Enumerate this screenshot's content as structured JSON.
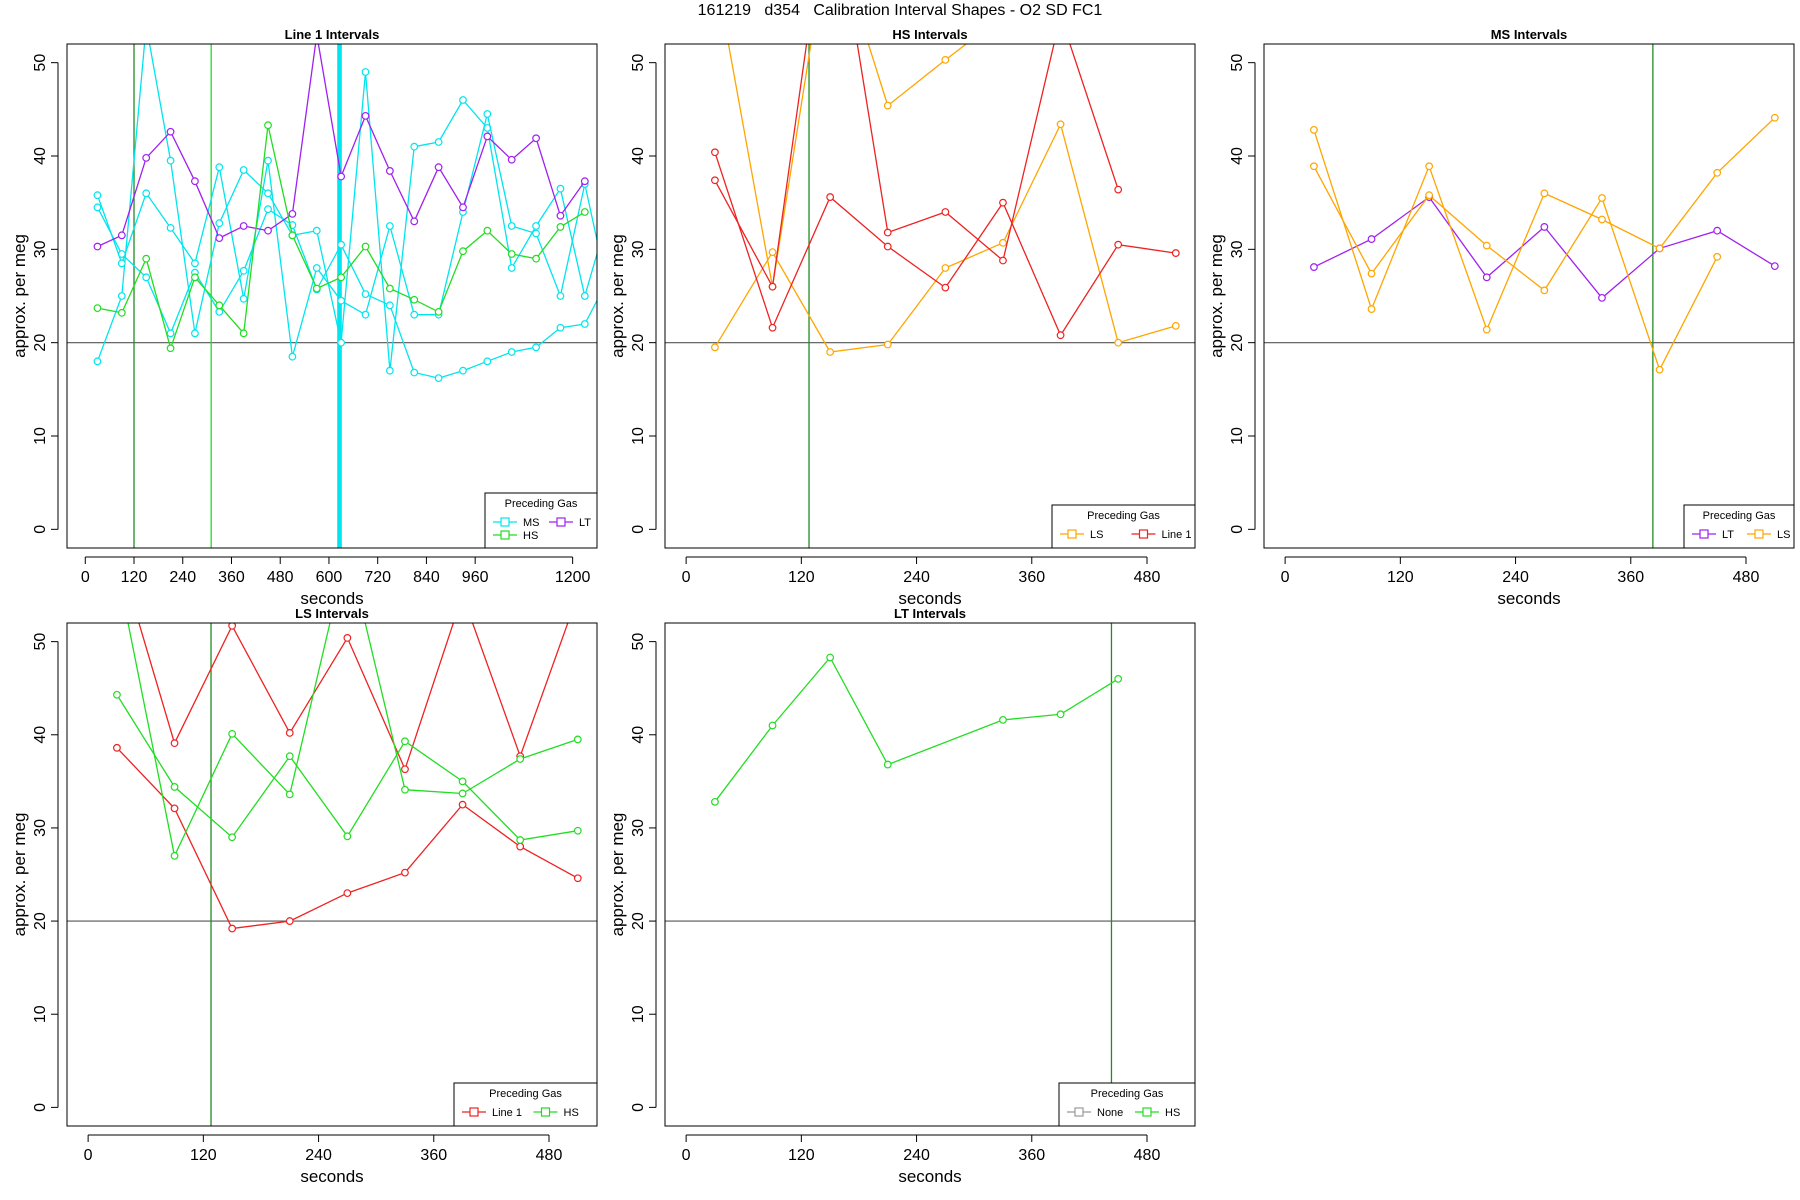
{
  "page": {
    "title": "161219   d354   Calibration Interval Shapes - O2 SD FC1"
  },
  "colors": {
    "MS": "#00e5ee",
    "HS": "#22dd22",
    "LT": "#a020f0",
    "LS": "#ffa500",
    "Line 1": "#ee2222",
    "None": "#999999",
    "marker_dark_green": "#228b22",
    "marker_light_green": "#22dd22",
    "marker_cyan": "#00e5ee",
    "reference_line": "#555555"
  },
  "chart_data": [
    {
      "type": "line",
      "title": "Line 1 Intervals",
      "xlabel": "seconds",
      "ylabel": "approx. per meg",
      "xlim": [
        -45,
        1260
      ],
      "ylim": [
        -2,
        52
      ],
      "xticks": [
        0,
        120,
        240,
        360,
        480,
        600,
        720,
        840,
        960,
        1200
      ],
      "yticks": [
        0,
        10,
        20,
        30,
        40,
        50
      ],
      "hline": 20,
      "vlines": [
        {
          "x": 120,
          "color": "marker_dark_green"
        },
        {
          "x": 310,
          "color": "marker_light_green"
        },
        {
          "x": 624,
          "color": "marker_cyan"
        },
        {
          "x": 628,
          "color": "marker_cyan"
        }
      ],
      "legend": {
        "title": "Preceding Gas",
        "entries": [
          "MS",
          "LT",
          "HS"
        ],
        "position": "bottom-right"
      },
      "series": [
        {
          "name": "MS",
          "x": [
            30,
            90,
            150,
            210,
            270,
            330,
            390,
            450,
            510,
            570,
            630,
            690,
            750,
            810,
            870,
            930,
            990,
            1050,
            1110,
            1170,
            1230,
            1290
          ],
          "y": [
            18,
            25,
            54,
            39.5,
            21,
            32.8,
            38.5,
            36,
            31.5,
            32,
            20,
            49,
            17,
            41,
            41.5,
            46,
            43,
            28,
            32.5,
            36.5,
            25,
            34
          ]
        },
        {
          "name": "MS",
          "x": [
            30,
            90,
            150,
            210,
            270,
            330,
            390,
            450,
            510,
            570,
            630,
            690,
            750,
            810,
            870,
            930,
            990,
            1050,
            1110,
            1170,
            1230,
            1290
          ],
          "y": [
            35.8,
            28.5,
            36,
            32.3,
            28.5,
            38.8,
            24.7,
            39.5,
            18.5,
            28,
            24.5,
            23,
            32.5,
            23,
            23,
            34,
            44.5,
            32.5,
            31.7,
            25,
            37,
            25
          ]
        },
        {
          "name": "MS",
          "x": [
            30,
            90,
            150,
            210,
            270,
            330,
            390,
            450,
            510,
            570,
            630,
            690,
            750,
            810,
            870,
            930,
            990,
            1050,
            1110,
            1170,
            1230,
            1290
          ],
          "y": [
            34.5,
            29.5,
            27,
            21,
            27.5,
            23.3,
            27.7,
            34.3,
            32.6,
            25.7,
            30.5,
            25.2,
            24,
            16.8,
            16.2,
            17,
            18,
            19,
            19.5,
            21.6,
            22,
            27
          ]
        },
        {
          "name": "LT",
          "x": [
            30,
            90,
            150,
            210,
            270,
            330,
            390,
            450,
            510,
            570,
            630,
            690,
            750,
            810,
            870,
            930,
            990,
            1050,
            1110,
            1170,
            1230
          ],
          "y": [
            30.3,
            31.5,
            39.8,
            42.6,
            37.3,
            31.2,
            32.5,
            32,
            33.8,
            53,
            37.8,
            44.3,
            38.4,
            33,
            38.8,
            34.5,
            42.1,
            39.6,
            41.9,
            33.6,
            37.3
          ]
        },
        {
          "name": "HS",
          "x": [
            30,
            90,
            150,
            210,
            270,
            330,
            390,
            450,
            510,
            570,
            630,
            690,
            750,
            810,
            870,
            930,
            990,
            1050,
            1110,
            1170,
            1230
          ],
          "y": [
            23.7,
            23.2,
            29,
            19.4,
            27,
            24,
            21,
            43.3,
            31.5,
            25.8,
            27,
            30.3,
            25.8,
            24.6,
            23.3,
            29.8,
            32,
            29.5,
            29,
            32.4,
            34
          ]
        }
      ]
    },
    {
      "type": "line",
      "title": "HS Intervals",
      "xlabel": "seconds",
      "ylabel": "approx. per meg",
      "xlim": [
        -22,
        530
      ],
      "ylim": [
        -2,
        52
      ],
      "xticks": [
        0,
        120,
        240,
        360,
        480
      ],
      "yticks": [
        0,
        10,
        20,
        30,
        40,
        50
      ],
      "hline": 20,
      "vlines": [
        {
          "x": 128,
          "color": "marker_dark_green"
        }
      ],
      "legend": {
        "title": "Preceding Gas",
        "entries": [
          "LS",
          "Line 1"
        ],
        "position": "bottom-right"
      },
      "series": [
        {
          "name": "LS",
          "x": [
            30,
            90,
            150,
            210,
            270,
            330
          ],
          "y": [
            60,
            26,
            65,
            45.4,
            50.3,
            55
          ]
        },
        {
          "name": "LS",
          "x": [
            30,
            90,
            150,
            210,
            270,
            330,
            390,
            450,
            510
          ],
          "y": [
            19.5,
            29.7,
            19,
            19.8,
            28,
            30.7,
            43.4,
            20,
            21.8
          ]
        },
        {
          "name": "Line 1",
          "x": [
            30,
            90,
            150,
            210,
            270,
            330,
            390,
            450,
            510
          ],
          "y": [
            40.4,
            21.6,
            35.6,
            30.3,
            25.9,
            35,
            20.8,
            30.5,
            29.6
          ]
        },
        {
          "name": "Line 1",
          "x": [
            30,
            90,
            150,
            210,
            270,
            330,
            390,
            450
          ],
          "y": [
            37.4,
            26,
            70,
            31.8,
            34,
            28.8,
            55,
            36.4
          ]
        }
      ]
    },
    {
      "type": "line",
      "title": "MS Intervals",
      "xlabel": "seconds",
      "ylabel": "approx. per meg",
      "xlim": [
        -22,
        530
      ],
      "ylim": [
        -2,
        52
      ],
      "xticks": [
        0,
        120,
        240,
        360,
        480
      ],
      "yticks": [
        0,
        10,
        20,
        30,
        40,
        50
      ],
      "hline": 20,
      "vlines": [
        {
          "x": 383,
          "color": "marker_dark_green"
        }
      ],
      "legend": {
        "title": "Preceding Gas",
        "entries": [
          "LT",
          "LS"
        ],
        "position": "bottom-right"
      },
      "series": [
        {
          "name": "LT",
          "x": [
            30,
            90,
            150,
            210,
            270,
            330,
            390,
            450,
            510
          ],
          "y": [
            28.1,
            31.1,
            35.6,
            27,
            32.4,
            24.8,
            30.1,
            32,
            28.2
          ]
        },
        {
          "name": "LS",
          "x": [
            30,
            90,
            150,
            210,
            270,
            330,
            390,
            450,
            510
          ],
          "y": [
            42.8,
            23.6,
            38.9,
            21.4,
            36,
            33.2,
            30.1,
            38.2,
            44.1
          ]
        },
        {
          "name": "LS",
          "x": [
            30,
            90,
            150,
            210,
            270,
            330,
            390,
            450
          ],
          "y": [
            38.9,
            27.4,
            35.8,
            30.4,
            25.6,
            35.5,
            17.1,
            29.2
          ]
        }
      ]
    },
    {
      "type": "line",
      "title": "LS Intervals",
      "xlabel": "seconds",
      "ylabel": "approx. per meg",
      "xlim": [
        -22,
        530
      ],
      "ylim": [
        -2,
        52
      ],
      "xticks": [
        0,
        120,
        240,
        360,
        480
      ],
      "yticks": [
        0,
        10,
        20,
        30,
        40,
        50
      ],
      "hline": 20,
      "vlines": [
        {
          "x": 128,
          "color": "marker_dark_green"
        }
      ],
      "legend": {
        "title": "Preceding Gas",
        "entries": [
          "Line 1",
          "HS"
        ],
        "position": "bottom-right"
      },
      "series": [
        {
          "name": "Line 1",
          "x": [
            30,
            90,
            150,
            210,
            270,
            330,
            390,
            450,
            510
          ],
          "y": [
            60,
            39.1,
            51.7,
            40.2,
            50.4,
            36.3,
            55,
            37.7,
            55
          ]
        },
        {
          "name": "Line 1",
          "x": [
            30,
            90,
            150,
            210,
            270,
            330,
            390,
            450,
            510
          ],
          "y": [
            38.6,
            32.1,
            19.2,
            20,
            23,
            25.2,
            32.5,
            28,
            24.6
          ]
        },
        {
          "name": "HS",
          "x": [
            30,
            90,
            150,
            210,
            270,
            330,
            390,
            450,
            510
          ],
          "y": [
            44.3,
            34.4,
            29,
            37.7,
            29.1,
            39.3,
            35,
            28.7,
            29.7
          ]
        },
        {
          "name": "HS",
          "x": [
            30,
            90,
            150,
            210,
            270,
            330,
            390,
            450,
            510
          ],
          "y": [
            58,
            27,
            40.1,
            33.6,
            60,
            34.1,
            33.7,
            37.4,
            39.5
          ]
        }
      ]
    },
    {
      "type": "line",
      "title": "LT Intervals",
      "xlabel": "seconds",
      "ylabel": "approx. per meg",
      "xlim": [
        -22,
        530
      ],
      "ylim": [
        -2,
        52
      ],
      "xticks": [
        0,
        120,
        240,
        360,
        480
      ],
      "yticks": [
        0,
        10,
        20,
        30,
        40,
        50
      ],
      "hline": 20,
      "vlines": [
        {
          "x": 443,
          "color": "marker_dark_green"
        }
      ],
      "legend": {
        "title": "Preceding Gas",
        "entries": [
          "None",
          "HS"
        ],
        "position": "bottom-right"
      },
      "series": [
        {
          "name": "HS",
          "x": [
            30,
            90,
            150,
            210,
            330,
            390,
            450
          ],
          "y": [
            32.8,
            41,
            48.3,
            36.8,
            41.6,
            42.2,
            46
          ]
        }
      ]
    }
  ]
}
